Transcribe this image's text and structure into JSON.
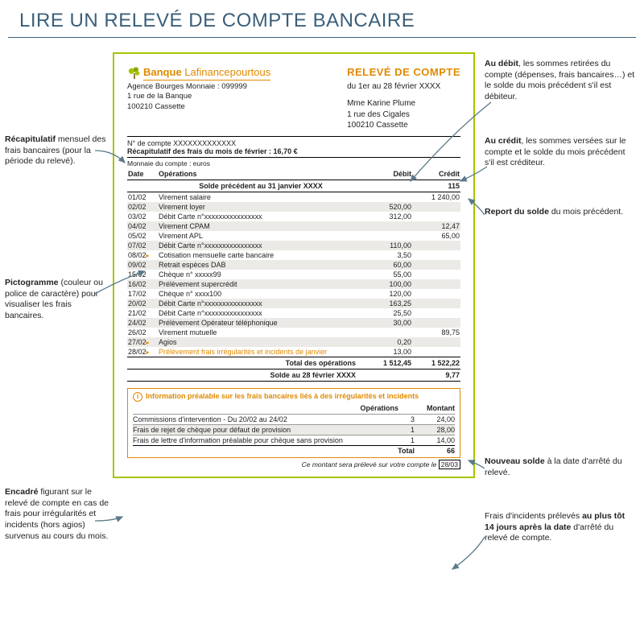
{
  "page_title": "LIRE UN RELEVÉ DE COMPTE BANCAIRE",
  "colors": {
    "accent_green": "#a5c400",
    "accent_orange": "#e08a00",
    "title_blue": "#3b5f7a",
    "zebra": "#eceae6",
    "arrow": "#5a7a8a"
  },
  "bank": {
    "name_bold": "Banque",
    "name_rest": " Lafinancepourtous",
    "agency": "Agence Bourges Monnaie : 099999",
    "addr1": "1 rue de la Banque",
    "addr2": "100210 Cassette"
  },
  "statement": {
    "title": "RELEVÉ DE COMPTE",
    "period": "du 1er au 28 février XXXX",
    "client_name": "Mme Karine Plume",
    "client_addr1": "1 rue des Cigales",
    "client_addr2": "100210 Cassette",
    "account": "N° de compte XXXXXXXXXXXXX",
    "recap": "Récapitulatif des frais du mois de février : 16,70 €",
    "currency": "Monnaie du compte : euros"
  },
  "columns": {
    "date": "Date",
    "op": "Opérations",
    "debit": "Débit",
    "credit": "Crédit"
  },
  "prev_balance": {
    "label": "Solde précédent au 31 janvier XXXX",
    "value": "115"
  },
  "rows": [
    {
      "d": "01/02",
      "op": "Virement salaire",
      "db": "",
      "cr": "1 240,00",
      "z": 0
    },
    {
      "d": "02/02",
      "op": "Virement loyer",
      "db": "520,00",
      "cr": "",
      "z": 1
    },
    {
      "d": "03/02",
      "op": "Débit Carte n°xxxxxxxxxxxxxxxx",
      "db": "312,00",
      "cr": "",
      "z": 0
    },
    {
      "d": "04/02",
      "op": "Virement CPAM",
      "db": "",
      "cr": "12,47",
      "z": 1
    },
    {
      "d": "05/02",
      "op": "Virement APL",
      "db": "",
      "cr": "65,00",
      "z": 0
    },
    {
      "d": "07/02",
      "op": "Débit Carte n°xxxxxxxxxxxxxxxx",
      "db": "110,00",
      "cr": "",
      "z": 1
    },
    {
      "d": "08/02",
      "op": "Cotisation mensuelle carte bancaire",
      "db": "3,50",
      "cr": "",
      "z": 0,
      "mk": 1
    },
    {
      "d": "09/02",
      "op": "Retrait espèces DAB",
      "db": "60,00",
      "cr": "",
      "z": 1
    },
    {
      "d": "15/02",
      "op": "Chèque n° xxxxx99",
      "db": "55,00",
      "cr": "",
      "z": 0
    },
    {
      "d": "16/02",
      "op": "Prélèvement supercrédit",
      "db": "100,00",
      "cr": "",
      "z": 1
    },
    {
      "d": "17/02",
      "op": "Chèque n° xxxx100",
      "db": "120,00",
      "cr": "",
      "z": 0
    },
    {
      "d": "20/02",
      "op": "Débit Carte n°xxxxxxxxxxxxxxxx",
      "db": "163,25",
      "cr": "",
      "z": 1
    },
    {
      "d": "21/02",
      "op": "Débit Carte n°xxxxxxxxxxxxxxxx",
      "db": "25,50",
      "cr": "",
      "z": 0
    },
    {
      "d": "24/02",
      "op": "Prélèvement Opérateur téléphonique",
      "db": "30,00",
      "cr": "",
      "z": 1
    },
    {
      "d": "26/02",
      "op": "Virement mutuelle",
      "db": "",
      "cr": "89,75",
      "z": 0
    },
    {
      "d": "27/02",
      "op": "Agios",
      "db": "0,20",
      "cr": "",
      "z": 1,
      "mk": 1
    },
    {
      "d": "28/02",
      "op": "Prélèvement frais irrégularités et incidents de janvier",
      "db": "13,00",
      "cr": "",
      "z": 0,
      "mk": 1,
      "orange": 1
    }
  ],
  "totals": {
    "label": "Total des opérations",
    "debit": "1 512,45",
    "credit": "1 522,22"
  },
  "new_balance": {
    "label": "Solde au 28 février XXXX",
    "value": "9,77"
  },
  "info": {
    "title": "Information préalable sur les frais bancaires liés à des irrégularités et incidents",
    "col1": "Opérations",
    "col2": "Montant",
    "rows": [
      {
        "l": "Commissions d'intervention - Du 20/02 au 24/02",
        "c1": "3",
        "c2": "24,00",
        "z": 0
      },
      {
        "l": "Frais de rejet de chèque pour défaut de provision",
        "c1": "1",
        "c2": "28,00",
        "z": 1
      },
      {
        "l": "Frais de lettre d'information préalable pour chèque sans provision",
        "c1": "1",
        "c2": "14,00",
        "z": 0
      }
    ],
    "total_label": "Total",
    "total": "66",
    "footnote_pre": "Ce montant sera prélevé sur votre compte le ",
    "footnote_date": "28/03"
  },
  "annotations": {
    "a1": "<b>Récapitulatif</b> mensuel des frais bancaires (pour la période du relevé).",
    "a2": "<b>Pictogramme</b> (couleur ou police de caractère) pour visualiser les frais bancaires.",
    "a3": "<b>Encadré</b> figurant sur le relevé de compte en cas de frais pour irrégularités et incidents (hors agios) survenus au cours du mois.",
    "a4": "<b>Au débit</b>, les sommes retirées du compte (dépenses, frais bancaires…) et le solde du mois précédent s'il est débiteur.",
    "a5": "<b>Au crédit</b>, les sommes versées sur le compte et le solde du mois précédent s'il est créditeur.",
    "a6": "<b>Report du solde</b> du mois précédent.",
    "a7": "<b>Nouveau solde</b> à la date d'arrêté du relevé.",
    "a8": "Frais d'incidents prélevés <b>au plus tôt 14 jours après la date</b> d'arrêté du relevé de compte."
  }
}
